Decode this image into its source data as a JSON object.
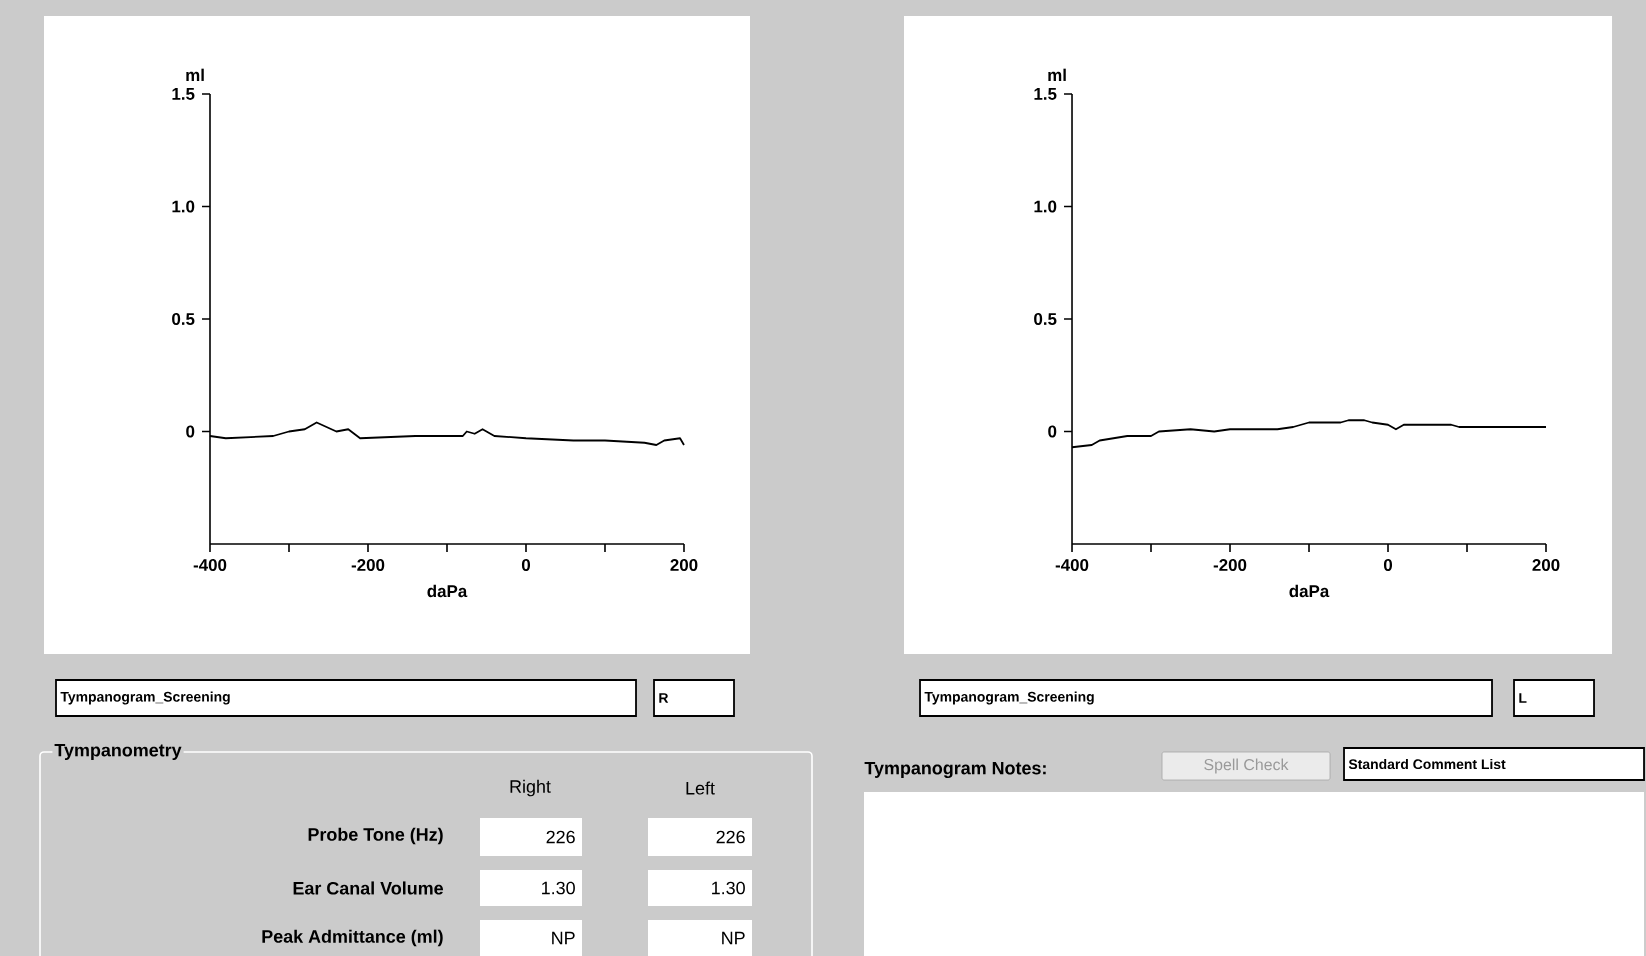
{
  "chart_data": [
    {
      "type": "line",
      "xlabel": "daPa",
      "ylabel": "ml",
      "color": "#000000",
      "marker": "none",
      "line_style": "solid",
      "x": [
        -400,
        -380,
        -320,
        -300,
        -280,
        -265,
        -240,
        -225,
        -210,
        -140,
        -80,
        -75,
        -65,
        -55,
        -40,
        0,
        60,
        100,
        150,
        165,
        175,
        195,
        200
      ],
      "values": [
        -0.02,
        -0.03,
        -0.02,
        0.0,
        0.01,
        0.04,
        0.0,
        0.01,
        -0.03,
        -0.02,
        -0.02,
        0.0,
        -0.01,
        0.01,
        -0.02,
        -0.03,
        -0.04,
        -0.04,
        -0.05,
        -0.06,
        -0.04,
        -0.03,
        -0.06
      ],
      "xlim": [
        -400,
        200
      ],
      "ylim": [
        -0.5,
        1.5
      ],
      "xticks": [
        -400,
        {
          "value": -300,
          "label": null
        },
        -200,
        {
          "value": -100,
          "label": null
        },
        0,
        {
          "value": 100,
          "label": null
        },
        200
      ],
      "yticks": [
        0,
        0.5,
        {
          "value": 1,
          "label": "1.0"
        },
        1.5
      ]
    },
    {
      "type": "line",
      "xlabel": "daPa",
      "ylabel": "ml",
      "color": "#000000",
      "marker": "none",
      "line_style": "solid",
      "x": [
        -400,
        -375,
        -365,
        -330,
        -300,
        -290,
        -250,
        -220,
        -200,
        -140,
        -120,
        -100,
        -60,
        -50,
        -30,
        -20,
        0,
        10,
        20,
        80,
        90,
        200
      ],
      "values": [
        -0.07,
        -0.06,
        -0.04,
        -0.02,
        -0.02,
        0.0,
        0.01,
        0.0,
        0.01,
        0.01,
        0.02,
        0.04,
        0.04,
        0.05,
        0.05,
        0.04,
        0.03,
        0.01,
        0.03,
        0.03,
        0.02,
        0.02
      ],
      "xlim": [
        -400,
        200
      ],
      "ylim": [
        -0.5,
        1.5
      ],
      "xticks": [
        -400,
        {
          "value": -300,
          "label": null
        },
        -200,
        {
          "value": -100,
          "label": null
        },
        0,
        {
          "value": 100,
          "label": null
        },
        200
      ],
      "yticks": [
        0,
        0.5,
        {
          "value": 1,
          "label": "1.0"
        },
        1.5
      ]
    },
    {
      "type": "other",
      "annotations": [
        "Tympanogram_Screening",
        "R",
        "Tympanogram_Screening",
        "L",
        "Tympanometry",
        "Right",
        "Left",
        "Probe Tone (Hz)",
        "226",
        "226",
        "Ear Canal Volume",
        "1.30",
        "1.30",
        "Peak Admittance (ml)",
        "NP",
        "NP",
        "Tympanogram Notes:",
        "Spell Check",
        "Standard Comment List"
      ]
    }
  ]
}
